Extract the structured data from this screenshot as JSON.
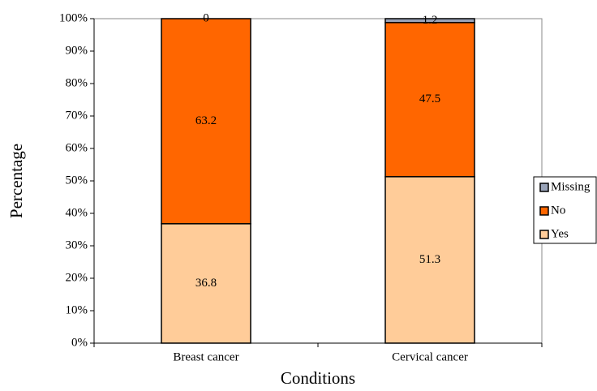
{
  "chart_data": {
    "type": "stacked_bar",
    "x_label": "Conditions",
    "y_label": "Percentage",
    "categories": [
      "Breast cancer",
      "Cervical cancer"
    ],
    "series": [
      {
        "name": "Yes",
        "color": "#ffcc99",
        "values": [
          36.8,
          51.3
        ]
      },
      {
        "name": "No",
        "color": "#ff6600",
        "values": [
          63.2,
          47.5
        ]
      },
      {
        "name": "Missing",
        "color": "#99a3b8",
        "values": [
          0,
          1.2
        ]
      }
    ],
    "ylim": [
      0,
      100
    ],
    "yticks": [
      {
        "value": 0,
        "label": "0%"
      },
      {
        "value": 10,
        "label": "10%"
      },
      {
        "value": 20,
        "label": "20%"
      },
      {
        "value": 30,
        "label": "30%"
      },
      {
        "value": 40,
        "label": "40%"
      },
      {
        "value": 50,
        "label": "50%"
      },
      {
        "value": 60,
        "label": "60%"
      },
      {
        "value": 70,
        "label": "70%"
      },
      {
        "value": 80,
        "label": "80%"
      },
      {
        "value": 90,
        "label": "90%"
      },
      {
        "value": 100,
        "label": "100%"
      }
    ],
    "legend": "right",
    "grid": false
  }
}
